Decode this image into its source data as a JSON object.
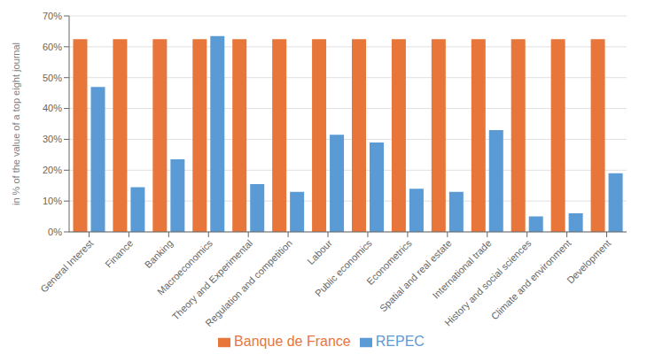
{
  "chart_data": {
    "type": "bar",
    "ylabel": "in % of the value of a top eight journal",
    "categories": [
      "General Interest",
      "Finance",
      "Banking",
      "Macroeconomics",
      "Theory and Experimental",
      "Regulation and competition",
      "Labour",
      "Public economics",
      "Econometrics",
      "Spatial and real estate",
      "International trade",
      "History and social sciences",
      "Climate and environment",
      "Development"
    ],
    "series": [
      {
        "name": "Banque de France",
        "color": "#E8763A",
        "values": [
          62.5,
          62.5,
          62.5,
          62.5,
          62.5,
          62.5,
          62.5,
          62.5,
          62.5,
          62.5,
          62.5,
          62.5,
          62.5,
          62.5
        ]
      },
      {
        "name": "REPEC",
        "color": "#5B9BD5",
        "values": [
          47.0,
          14.5,
          23.5,
          63.5,
          15.5,
          13.0,
          31.5,
          29.0,
          14.0,
          13.0,
          33.0,
          5.0,
          6.0,
          19.0
        ]
      }
    ],
    "ylim": [
      0,
      70
    ],
    "yticks": [
      {
        "value": 0,
        "label": "0%"
      },
      {
        "value": 10,
        "label": "10%"
      },
      {
        "value": 20,
        "label": "20%"
      },
      {
        "value": 30,
        "label": "30%"
      },
      {
        "value": 40,
        "label": "40%"
      },
      {
        "value": 50,
        "label": "50%"
      },
      {
        "value": 60,
        "label": "60%"
      },
      {
        "value": 70,
        "label": "70%"
      }
    ],
    "grid": true,
    "legend": "bottom"
  }
}
